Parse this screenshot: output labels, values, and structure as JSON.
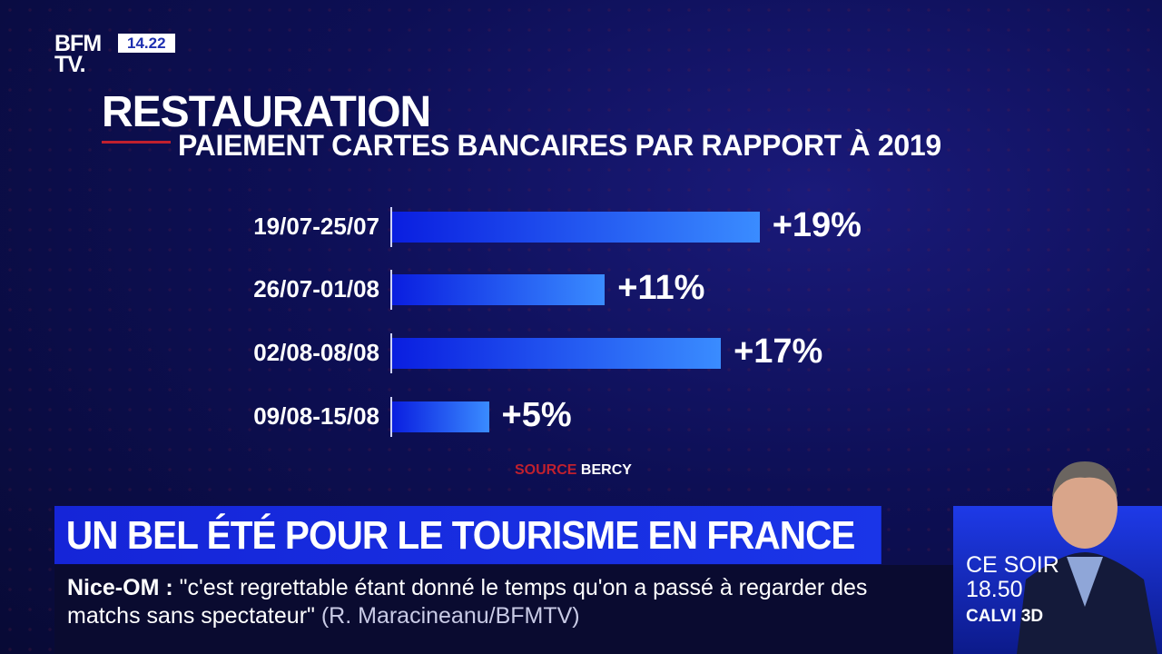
{
  "channel": {
    "logo": "BFM TV.",
    "time": "14.22"
  },
  "chart_data": {
    "type": "bar",
    "orientation": "horizontal",
    "title": "RESTAURATION",
    "subtitle": "PAIEMENT CARTES BANCAIRES PAR RAPPORT À 2019",
    "categories": [
      "19/07-25/07",
      "26/07-01/08",
      "02/08-08/08",
      "09/08-15/08"
    ],
    "values": [
      19,
      11,
      17,
      5
    ],
    "data_labels": [
      "+19%",
      "+11%",
      "+17%",
      "+5%"
    ],
    "unit": "%",
    "source_label": "SOURCE",
    "source": "BERCY",
    "bar_color": "#1a4cf0"
  },
  "headline": "UN BEL ÉTÉ POUR LE TOURISME EN FRANCE",
  "ticker": {
    "topic": "Nice-OM :",
    "quote": "\"c'est regrettable étant donné le temps qu'on a passé à regarder des matchs sans spectateur\"",
    "author": "(R. Maracineanu/BFMTV)"
  },
  "promo": {
    "line1": "CE SOIR",
    "line2": "18.50",
    "show": "CALVI 3D"
  }
}
